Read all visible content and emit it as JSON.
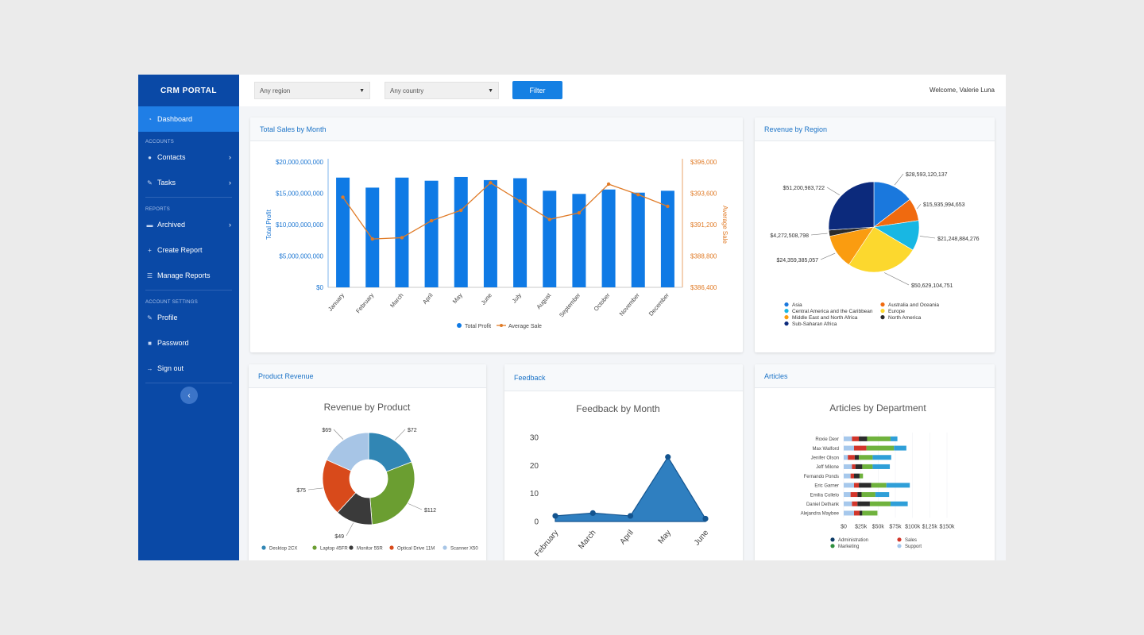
{
  "sidebar": {
    "brand": "CRM PORTAL",
    "dashboard": "Dashboard",
    "sections": {
      "accounts": "ACCOUNTS",
      "reports": "REPORTS",
      "settings": "ACCOUNT SETTINGS"
    },
    "items": {
      "contacts": "Contacts",
      "tasks": "Tasks",
      "archived": "Archived",
      "create_report": "Create Report",
      "manage_reports": "Manage Reports",
      "profile": "Profile",
      "password": "Password",
      "sign_out": "Sign out"
    }
  },
  "topbar": {
    "region_value": "Any region",
    "country_value": "Any country",
    "filter_label": "Filter",
    "welcome": "Welcome, Valerie Luna"
  },
  "cards": {
    "sales": "Total Sales by Month",
    "region": "Revenue by Region",
    "product": "Product Revenue",
    "feedback": "Feedback",
    "articles": "Articles"
  },
  "colors": {
    "sidebar": "#0a49a6",
    "accent": "#1580e3",
    "bar": "#0f7ae5",
    "line": "#e07b27"
  },
  "chart_data": [
    {
      "type": "bar",
      "title": "",
      "categories": [
        "January",
        "February",
        "March",
        "April",
        "May",
        "June",
        "July",
        "August",
        "September",
        "October",
        "November",
        "December"
      ],
      "series": [
        {
          "name": "Total Profit",
          "axis": "left",
          "values": [
            17500000000,
            15900000000,
            17500000000,
            17000000000,
            17600000000,
            17100000000,
            17400000000,
            15400000000,
            14900000000,
            15600000000,
            15100000000,
            15400000000
          ]
        },
        {
          "name": "Average Sale",
          "axis": "right",
          "type": "line",
          "values": [
            393300,
            390100,
            390200,
            391500,
            392300,
            394400,
            393000,
            391600,
            392100,
            394300,
            393500,
            392600
          ]
        }
      ],
      "ylabel": "Total Profit",
      "ylabel_right": "Average Sale",
      "ylim": [
        0,
        20000000000
      ],
      "ylim_right": [
        386400,
        396000
      ],
      "yticks": [
        "$0",
        "$5,000,000,000",
        "$10,000,000,000",
        "$15,000,000,000",
        "$20,000,000,000"
      ],
      "yticks_right": [
        "$386,400",
        "$388,800",
        "$391,200",
        "$393,600",
        "$396,000"
      ],
      "legend": "bottom"
    },
    {
      "type": "pie",
      "title": "",
      "slices": [
        {
          "name": "Asia",
          "value": 28593120137,
          "label": "$28,593,120,137",
          "color": "#1a78dd"
        },
        {
          "name": "Australia and Oceania",
          "value": 15935994653,
          "label": "$15,935,994,653",
          "color": "#f06a0f"
        },
        {
          "name": "Central America and the Caribbean",
          "value": 21248884276,
          "label": "$21,248,884,276",
          "color": "#18b7e3"
        },
        {
          "name": "Europe",
          "value": 50629104751,
          "label": "$50,629,104,751",
          "color": "#fcd82e"
        },
        {
          "name": "Middle East and North Africa",
          "value": 24359385057,
          "label": "$24,359,385,057",
          "color": "#fa9c10"
        },
        {
          "name": "North America",
          "value": 4272508798,
          "label": "$4,272,508,798",
          "color": "#2b2b2b"
        },
        {
          "name": "Sub-Saharan Africa",
          "value": 51200983722,
          "label": "$51,200,983,722",
          "color": "#0c2a7c"
        }
      ],
      "legend": "bottom"
    },
    {
      "type": "pie",
      "title": "Revenue by Product",
      "donut": true,
      "slices": [
        {
          "name": "Desktop 2CX",
          "value": 72,
          "label": "$72",
          "color": "#3186b4"
        },
        {
          "name": "Laptop 45FR",
          "value": 112,
          "label": "$112",
          "color": "#6b9e31"
        },
        {
          "name": "Monitor 55R",
          "value": 49,
          "label": "$49",
          "color": "#3a3a3a"
        },
        {
          "name": "Optical Drive 11M",
          "value": 75,
          "label": "$75",
          "color": "#d84a1b"
        },
        {
          "name": "Scanner X50",
          "value": 69,
          "label": "$69",
          "color": "#a7c5e6"
        }
      ],
      "legend": "bottom"
    },
    {
      "type": "area",
      "title": "Feedback by Month",
      "categories": [
        "February",
        "March",
        "April",
        "May",
        "June"
      ],
      "values": [
        2,
        3,
        2,
        23,
        1
      ],
      "ylim": [
        0,
        30
      ],
      "yticks": [
        "0",
        "10",
        "20",
        "30"
      ]
    },
    {
      "type": "bar",
      "title": "Articles by Department",
      "orientation": "horizontal",
      "stacked": true,
      "categories": [
        "Roxie Dexr",
        "Max Walford",
        "Jenifer Olson",
        "Jeff Milone",
        "Fernando Ponds",
        "Eric Garner",
        "Emilia Collelo",
        "Daniel Dethank",
        "Alejandra Maybee"
      ],
      "series": [
        {
          "name": "Administration",
          "color": "#0b3a66",
          "values": [
            0,
            0,
            0,
            0,
            0,
            0,
            0,
            0,
            0
          ]
        },
        {
          "name": "Support",
          "color": "#a6c8ec",
          "values": [
            12000,
            15000,
            6000,
            12000,
            10000,
            15000,
            10000,
            12000,
            15000
          ]
        },
        {
          "name": "Sales",
          "color": "#d2362b",
          "values": [
            10000,
            18000,
            10000,
            5000,
            5000,
            7000,
            10000,
            8000,
            8000
          ]
        },
        {
          "name": "Administration",
          "color": "#2b2b2b",
          "values": [
            12000,
            0,
            6000,
            10000,
            8000,
            18000,
            6000,
            18000,
            4000
          ]
        },
        {
          "name": "Marketing",
          "color": "#6fb23d",
          "values": [
            34000,
            40000,
            20000,
            15000,
            5000,
            22000,
            20000,
            30000,
            22000
          ]
        },
        {
          "name": "Support",
          "color": "#2f9fd8",
          "values": [
            10000,
            18000,
            27000,
            25000,
            0,
            34000,
            20000,
            25000,
            0
          ]
        }
      ],
      "xticks": [
        "$0",
        "$25k",
        "$50k",
        "$75k",
        "$100k",
        "$125k",
        "$150k"
      ],
      "xlim": [
        0,
        150000
      ],
      "legend_entries": [
        {
          "name": "Administration",
          "color": "#0b3a66"
        },
        {
          "name": "Sales",
          "color": "#d2362b"
        },
        {
          "name": "Marketing",
          "color": "#2e8f3e"
        },
        {
          "name": "Support",
          "color": "#a6c8ec"
        }
      ],
      "legend": "bottom"
    }
  ]
}
